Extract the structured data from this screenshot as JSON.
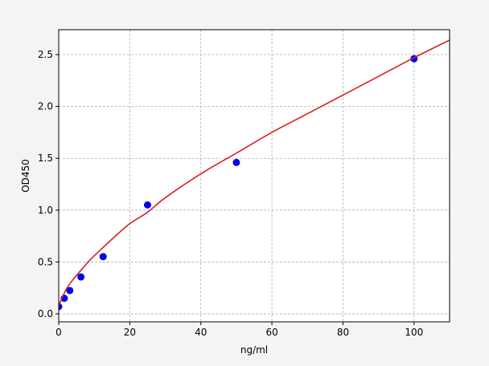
{
  "chart_data": {
    "type": "scatter",
    "title": "",
    "xlabel": "ng/ml",
    "ylabel": "OD450",
    "xlim": [
      0,
      110
    ],
    "ylim": [
      -0.077,
      2.74
    ],
    "xticks": [
      0,
      20,
      40,
      60,
      80,
      100
    ],
    "xtick_labels": [
      "0",
      "20",
      "40",
      "60",
      "80",
      "100"
    ],
    "yticks": [
      0.0,
      0.5,
      1.0,
      1.5,
      2.0,
      2.5
    ],
    "ytick_labels": [
      "0.0",
      "0.5",
      "1.0",
      "1.5",
      "2.0",
      "2.5"
    ],
    "grid": true,
    "series": [
      {
        "type": "scatter",
        "color": "#0000ee",
        "x": [
          0,
          1.56,
          3.125,
          6.25,
          12.5,
          25,
          50,
          100
        ],
        "y": [
          0.07,
          0.15,
          0.225,
          0.356,
          0.552,
          1.05,
          1.46,
          2.46
        ]
      },
      {
        "type": "line",
        "color": "#d62020",
        "x": [
          0,
          2,
          4,
          6,
          8,
          10,
          15,
          20,
          25,
          30,
          40,
          50,
          60,
          70,
          80,
          90,
          100,
          110
        ],
        "y": [
          0.08,
          0.23,
          0.33,
          0.41,
          0.49,
          0.56,
          0.72,
          0.87,
          0.98,
          1.12,
          1.35,
          1.55,
          1.75,
          1.93,
          2.11,
          2.29,
          2.47,
          2.64
        ]
      }
    ]
  }
}
